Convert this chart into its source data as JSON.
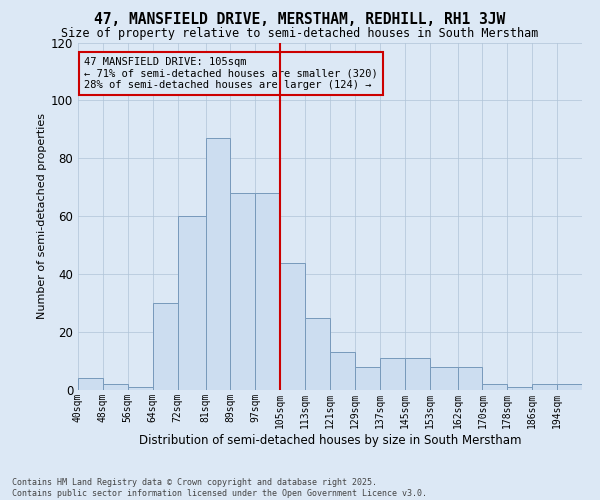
{
  "title": "47, MANSFIELD DRIVE, MERSTHAM, REDHILL, RH1 3JW",
  "subtitle": "Size of property relative to semi-detached houses in South Merstham",
  "xlabel": "Distribution of semi-detached houses by size in South Merstham",
  "ylabel": "Number of semi-detached properties",
  "footer": "Contains HM Land Registry data © Crown copyright and database right 2025.\nContains public sector information licensed under the Open Government Licence v3.0.",
  "bar_color": "#ccddf0",
  "bar_edge_color": "#7799bb",
  "grid_color": "#b0c4d8",
  "bg_color": "#dce8f5",
  "marker_value": 105,
  "marker_color": "#cc0000",
  "annotation_text": "47 MANSFIELD DRIVE: 105sqm\n← 71% of semi-detached houses are smaller (320)\n28% of semi-detached houses are larger (124) →",
  "bins": [
    40,
    48,
    56,
    64,
    72,
    81,
    89,
    97,
    105,
    113,
    121,
    129,
    137,
    145,
    153,
    162,
    170,
    178,
    186,
    194,
    202
  ],
  "counts": [
    4,
    2,
    1,
    30,
    60,
    87,
    68,
    68,
    44,
    25,
    13,
    8,
    11,
    11,
    8,
    8,
    2,
    1,
    2,
    2
  ],
  "ylim": [
    0,
    120
  ],
  "yticks": [
    0,
    20,
    40,
    60,
    80,
    100,
    120
  ]
}
